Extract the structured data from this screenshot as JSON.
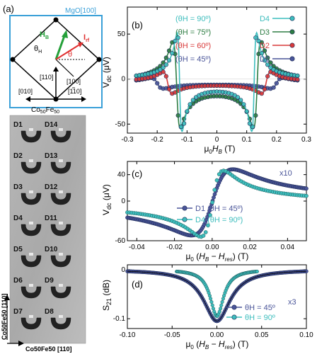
{
  "panel_a": {
    "label": "(a)",
    "axis_mgo": "MgO[100]",
    "h_b": "H",
    "h_b_sub": "B",
    "i_rf": "I",
    "i_rf_sub": "rf",
    "theta_h": "θ",
    "theta_h_sub": "H",
    "theta": "θ",
    "dir_110a": "[110]",
    "dir_100": "[100]",
    "dir_010": "[010]",
    "dir_1m10": "[110]",
    "cofe": "Co",
    "cofe_sub1": "50",
    "cofe_fe": "Fe",
    "cofe_sub2": "50",
    "photo_ylabel": "Co50Fe50 [110]",
    "photo_xlabel": "Co50Fe50 [110]",
    "devices_left": [
      "D1",
      "D2",
      "D3",
      "D4",
      "D5",
      "D6",
      "D7"
    ],
    "devices_right": [
      "D14",
      "D13",
      "D12",
      "D11",
      "D10",
      "D9",
      "D8"
    ]
  },
  "chart_data": [
    {
      "id": "b",
      "type": "line",
      "panel_label": "(b)",
      "ylabel": "V_dc (μV)",
      "xlabel": "μ0 H_B (T)",
      "xlim": [
        -0.3,
        0.3
      ],
      "ylim": [
        -60,
        80
      ],
      "xticks": [
        "-0.3",
        "-0.2",
        "-0.1",
        "0",
        "0.1",
        "0.2",
        "0.3"
      ],
      "yticks": [
        "-50",
        "0",
        "50"
      ],
      "series": [
        {
          "name": "D4",
          "theta": "(θH = 90º)",
          "color": "#3dbdbd",
          "res": 0.125,
          "amp": 55,
          "width": 0.008,
          "offset": 0
        },
        {
          "name": "D3",
          "theta": "(θH = 75º)",
          "color": "#2e7d43",
          "res": 0.135,
          "amp": 48,
          "width": 0.012,
          "offset": -2
        },
        {
          "name": "D2",
          "theta": "(θH = 60º)",
          "color": "#d83a3a",
          "res": 0.165,
          "amp": 12,
          "width": 0.015,
          "offset": -3
        },
        {
          "name": "D1",
          "theta": "(θH = 45º)",
          "color": "#4a5599",
          "res": 0.2,
          "amp": 6,
          "width": 0.02,
          "offset": -4
        }
      ]
    },
    {
      "id": "c",
      "type": "scatter",
      "panel_label": "(c)",
      "annotation": "x10",
      "ylabel": "V_dc (μV)",
      "xlabel": "μ0 (H_B - H_res) (T)",
      "xlim": [
        -0.045,
        0.05
      ],
      "ylim": [
        -60,
        60
      ],
      "xticks": [
        "-0.04",
        "-0.02",
        "0.00",
        "0.02",
        "0.04"
      ],
      "yticks": [
        "-60",
        "0",
        "40"
      ],
      "series": [
        {
          "name": "D1 (θH = 45º)",
          "color": "#4a5599"
        },
        {
          "name": "D4 (θH = 90º)",
          "color": "#3dbdbd"
        }
      ]
    },
    {
      "id": "d",
      "type": "scatter",
      "panel_label": "(d)",
      "annotation": "x3",
      "ylabel": "S21 (dB)",
      "xlabel": "μ0 (H_B - H_res) (T)",
      "xlim": [
        -0.1,
        0.1
      ],
      "ylim": [
        -0.12,
        0.01
      ],
      "xticks": [
        "-0.10",
        "-0.05",
        "0.00",
        "0.05",
        "0.10"
      ],
      "yticks": [
        "0",
        "-0.1"
      ],
      "series": [
        {
          "name": "θH = 45º",
          "color": "#4a5599"
        },
        {
          "name": "θH = 90º",
          "color": "#3dbdbd"
        }
      ]
    }
  ]
}
